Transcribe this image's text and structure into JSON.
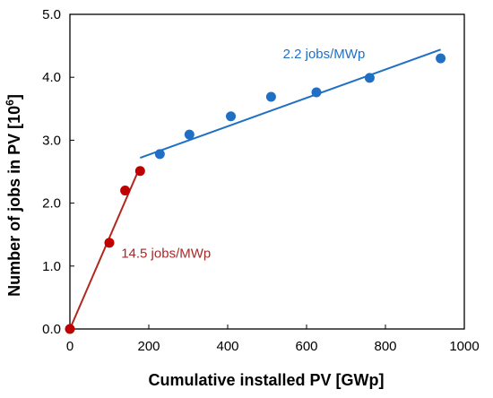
{
  "chart_data": {
    "type": "scatter",
    "xlabel": "Cumulative installed PV [GWp]",
    "ylabel_main": "Number of jobs in PV [10",
    "ylabel_sup": "6",
    "ylabel_tail": "]",
    "xlim": [
      0,
      1000
    ],
    "ylim": [
      0.0,
      5.0
    ],
    "xticks": [
      "0",
      "200",
      "400",
      "600",
      "800",
      "1000"
    ],
    "yticks": [
      "0.0",
      "1.0",
      "2.0",
      "3.0",
      "4.0",
      "5.0"
    ],
    "grid": false,
    "series": [
      {
        "color": "#C00000",
        "points": [
          [
            0,
            0.0
          ],
          [
            100,
            1.37
          ],
          [
            140,
            2.2
          ],
          [
            178,
            2.51
          ]
        ]
      },
      {
        "color": "#1F6FC5",
        "points": [
          [
            228,
            2.78
          ],
          [
            303,
            3.09
          ],
          [
            408,
            3.38
          ],
          [
            510,
            3.69
          ],
          [
            625,
            3.76
          ],
          [
            760,
            3.99
          ],
          [
            940,
            4.3
          ]
        ]
      }
    ],
    "trendlines": [
      {
        "color": "#B0281E",
        "from": [
          0,
          0.0
        ],
        "to": [
          178,
          2.58
        ]
      },
      {
        "color": "#1F6FC5",
        "from": [
          178,
          2.72
        ],
        "to": [
          940,
          4.44
        ]
      }
    ],
    "annotations": [
      {
        "text": "14.5 jobs/MWp",
        "color": "#A52A2A",
        "x": 130,
        "y": 1.13
      },
      {
        "text": "2.2 jobs/MWp",
        "color": "#1F6FC5",
        "x": 540,
        "y": 4.3
      }
    ]
  }
}
